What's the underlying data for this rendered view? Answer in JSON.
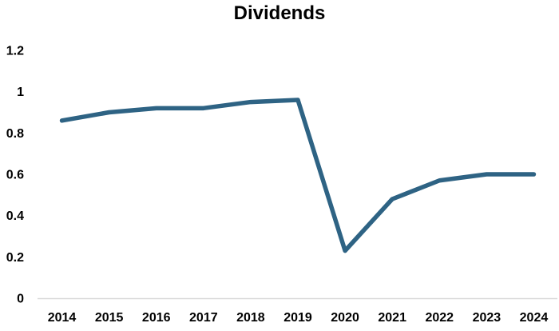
{
  "chart_data": {
    "type": "line",
    "title": "Dividends",
    "categories": [
      "2014",
      "2015",
      "2016",
      "2017",
      "2018",
      "2019",
      "2020",
      "2021",
      "2022",
      "2023",
      "2024"
    ],
    "series": [
      {
        "values": [
          0.86,
          0.9,
          0.92,
          0.92,
          0.95,
          0.96,
          0.23,
          0.48,
          0.57,
          0.6,
          0.6
        ],
        "color": "#2E6384"
      }
    ],
    "xlabel": "",
    "ylabel": "",
    "ylim": [
      0,
      1.2
    ],
    "yticks": [
      {
        "value": 0,
        "label": "0"
      },
      {
        "value": 0.2,
        "label": "0.2"
      },
      {
        "value": 0.4,
        "label": "0.4"
      },
      {
        "value": 0.6,
        "label": "0.6"
      },
      {
        "value": 0.8,
        "label": "0.8"
      },
      {
        "value": 1,
        "label": "1"
      },
      {
        "value": 1.2,
        "label": "1.2"
      }
    ],
    "grid": false,
    "legend": "none",
    "colors": {
      "axis_line": "#D9D9D9",
      "text": "#000000",
      "background": "#FFFFFF"
    }
  }
}
